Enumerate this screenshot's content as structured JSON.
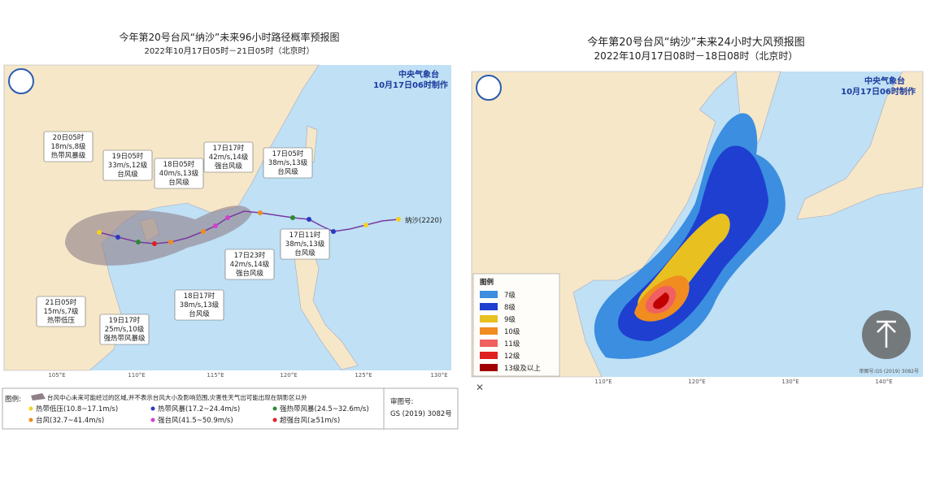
{
  "left": {
    "title": "今年第20号台风“纳沙”未来96小时路径概率预报图",
    "subtitle": "2022年10月17日05时－21日05时（北京时）",
    "agency": "中央气象台",
    "issued": "10月17日06时制作",
    "typhoon": "纳沙(2220)",
    "track_labels": [
      [
        "20日05时",
        "18m/s,8级",
        "热带风暴级"
      ],
      [
        "19日05时",
        "33m/s,12级",
        "台风级"
      ],
      [
        "18日05时",
        "40m/s,13级",
        "台风级"
      ],
      [
        "17日17时",
        "42m/s,14级",
        "强台风级"
      ],
      [
        "17日05时",
        "38m/s,13级",
        "台风级"
      ],
      [
        "17日11时",
        "38m/s,13级",
        "台风级"
      ],
      [
        "17日23时",
        "42m/s,14级",
        "强台风级"
      ],
      [
        "18日17时",
        "38m/s,13级",
        "台风级"
      ],
      [
        "21日05时",
        "15m/s,7级",
        "热带低压"
      ],
      [
        "19日17时",
        "25m/s,10级",
        "强热带风暴级"
      ]
    ],
    "axis_labels": [
      "105°E",
      "110°E",
      "115°E",
      "120°E",
      "125°E",
      "130°E"
    ],
    "legend": {
      "title": "图例:",
      "cone": "台风中心未来可能经过的区域,并不表示台风大小及影响范围,灾害性天气出可能出现在阴影区以外",
      "items": [
        "热带低压(10.8~17.1m/s)",
        "热带风暴(17.2~24.4m/s)",
        "强热带风暴(24.5~32.6m/s)",
        "台风(32.7~41.4m/s)",
        "强台风(41.5~50.9m/s)",
        "超强台风(≥51m/s)"
      ],
      "review_label": "审图号:",
      "review_number": "GS (2019) 3082号"
    }
  },
  "right": {
    "title": "今年第20号台风“纳沙”未来24小时大风预报图",
    "subtitle": "2022年10月17日08时－18日08时（北京时）",
    "agency": "中央气象台",
    "issued": "10月17日06时制作",
    "axis_labels": [
      "110°E",
      "120°E",
      "130°E",
      "140°E"
    ],
    "legend": {
      "title": "图例",
      "items": [
        "7级",
        "8级",
        "9级",
        "10级",
        "11级",
        "12级",
        "13级及以上"
      ]
    },
    "review": "审图号:GS (2019) 3082号"
  }
}
